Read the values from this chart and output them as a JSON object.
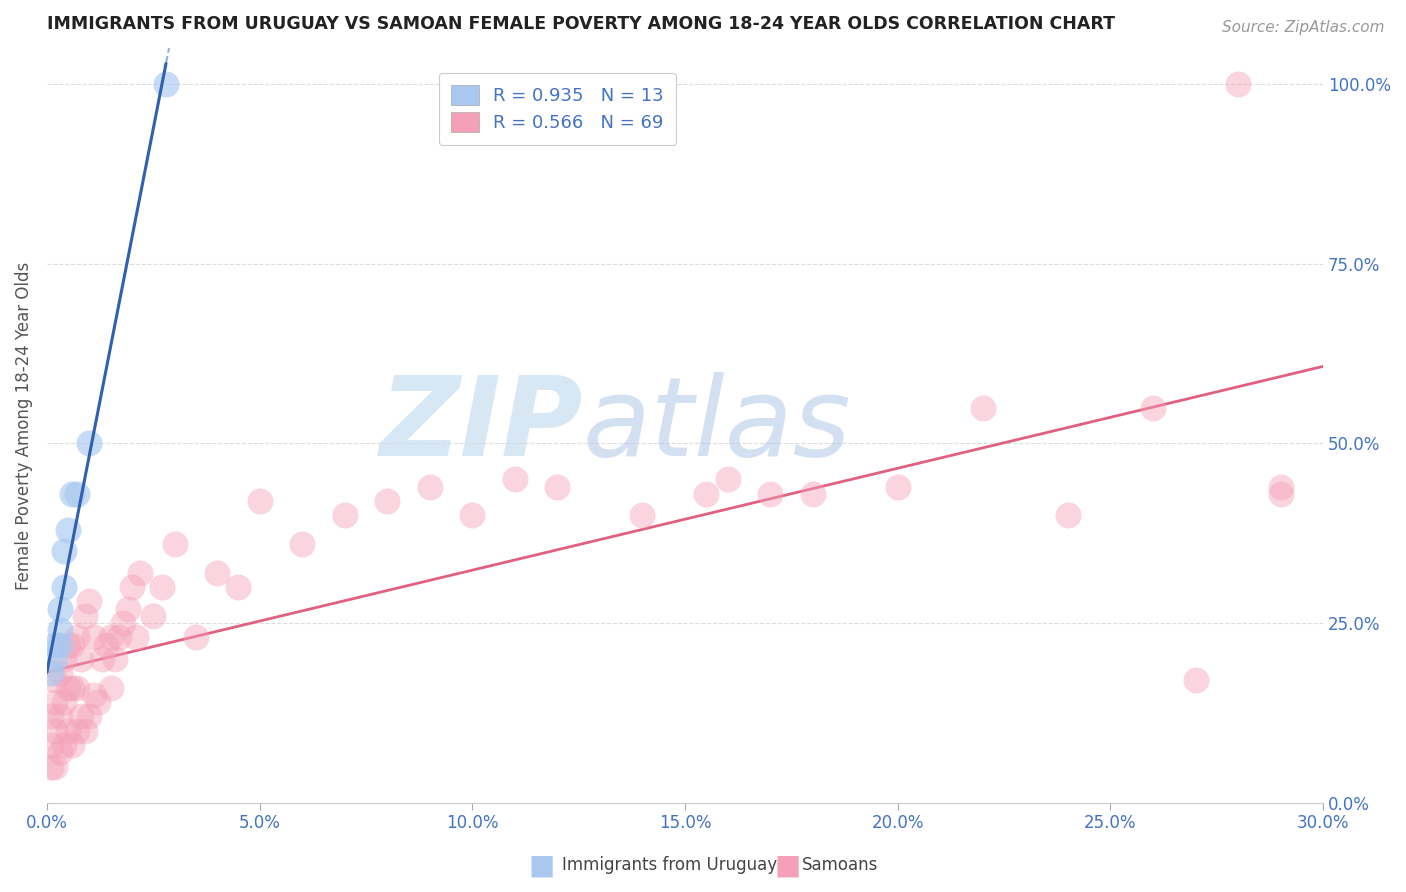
{
  "title": "IMMIGRANTS FROM URUGUAY VS SAMOAN FEMALE POVERTY AMONG 18-24 YEAR OLDS CORRELATION CHART",
  "source": "Source: ZipAtlas.com",
  "ylabel": "Female Poverty Among 18-24 Year Olds",
  "xlim": [
    0.0,
    0.3
  ],
  "ylim": [
    0.0,
    1.05
  ],
  "uruguay_R": 0.935,
  "uruguay_N": 13,
  "samoan_R": 0.566,
  "samoan_N": 69,
  "uruguay_color": "#a8c8f0",
  "samoan_color": "#f4a0b8",
  "uruguay_line_color": "#3060b0",
  "samoan_line_color": "#e06080",
  "legend_label_1": "Immigrants from Uruguay",
  "legend_label_2": "Samoans",
  "watermark_zip": "ZIP",
  "watermark_atlas": "atlas",
  "background_color": "#ffffff",
  "grid_color": "#dddddd",
  "title_color": "#222222",
  "axis_label_color": "#555555",
  "tick_color": "#4472c4",
  "uruguay_x": [
    0.001,
    0.002,
    0.002,
    0.003,
    0.003,
    0.003,
    0.004,
    0.004,
    0.005,
    0.006,
    0.007,
    0.01,
    0.028
  ],
  "uruguay_y": [
    0.18,
    0.2,
    0.22,
    0.22,
    0.24,
    0.27,
    0.3,
    0.35,
    0.38,
    0.43,
    0.43,
    0.5,
    1.0
  ],
  "samoan_x": [
    0.001,
    0.001,
    0.001,
    0.002,
    0.002,
    0.002,
    0.002,
    0.003,
    0.003,
    0.003,
    0.004,
    0.004,
    0.004,
    0.005,
    0.005,
    0.005,
    0.006,
    0.006,
    0.006,
    0.007,
    0.007,
    0.007,
    0.008,
    0.008,
    0.009,
    0.009,
    0.01,
    0.01,
    0.011,
    0.011,
    0.012,
    0.013,
    0.014,
    0.015,
    0.015,
    0.016,
    0.017,
    0.018,
    0.019,
    0.02,
    0.021,
    0.022,
    0.025,
    0.027,
    0.03,
    0.035,
    0.04,
    0.045,
    0.05,
    0.06,
    0.07,
    0.08,
    0.09,
    0.1,
    0.11,
    0.12,
    0.14,
    0.16,
    0.18,
    0.2,
    0.22,
    0.24,
    0.26,
    0.27,
    0.28,
    0.29,
    0.29,
    0.17,
    0.155
  ],
  "samoan_y": [
    0.05,
    0.08,
    0.12,
    0.05,
    0.1,
    0.14,
    0.17,
    0.07,
    0.12,
    0.18,
    0.08,
    0.14,
    0.2,
    0.1,
    0.16,
    0.22,
    0.08,
    0.16,
    0.22,
    0.1,
    0.16,
    0.23,
    0.12,
    0.2,
    0.1,
    0.26,
    0.12,
    0.28,
    0.15,
    0.23,
    0.14,
    0.2,
    0.22,
    0.16,
    0.23,
    0.2,
    0.23,
    0.25,
    0.27,
    0.3,
    0.23,
    0.32,
    0.26,
    0.3,
    0.36,
    0.23,
    0.32,
    0.3,
    0.42,
    0.36,
    0.4,
    0.42,
    0.44,
    0.4,
    0.45,
    0.44,
    0.4,
    0.45,
    0.43,
    0.44,
    0.55,
    0.4,
    0.55,
    0.17,
    1.0,
    0.43,
    0.44,
    0.43,
    0.43
  ]
}
